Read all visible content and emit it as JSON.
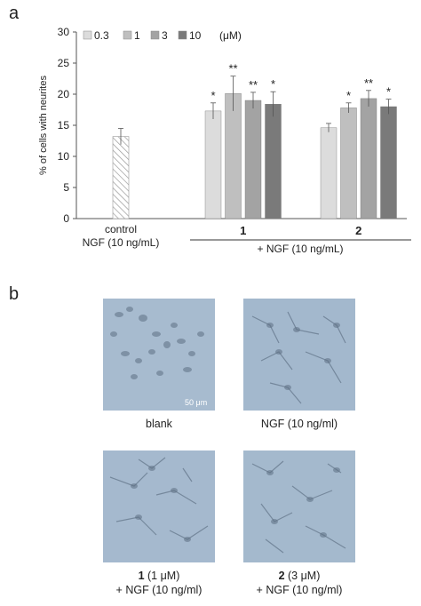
{
  "panels": {
    "a": "a",
    "b": "b"
  },
  "chart_data": {
    "type": "bar",
    "ylabel": "% of cells with neurites",
    "ylim": [
      0,
      30
    ],
    "yticks": [
      0,
      5,
      10,
      15,
      20,
      25,
      30
    ],
    "legend": {
      "placement": "top",
      "entries": [
        "0.3",
        "1",
        "3",
        "10"
      ],
      "unit": "(μM)"
    },
    "colors": {
      "control": "hatched",
      "series": [
        "#dcdcdc",
        "#bfbfbf",
        "#a3a3a3",
        "#7a7a7a"
      ]
    },
    "control": {
      "value": 13.2,
      "error": 1.3,
      "label_line1": "control",
      "label_line2": "NGF (10 ng/mL)"
    },
    "groups": [
      {
        "name": "1",
        "values": [
          17.3,
          20.1,
          19.0,
          18.4
        ],
        "errors": [
          1.3,
          2.8,
          1.3,
          2.0
        ],
        "marks": [
          "*",
          "**",
          "**",
          "*"
        ]
      },
      {
        "name": "2",
        "values": [
          14.6,
          17.8,
          19.3,
          18.0
        ],
        "errors": [
          0.7,
          0.8,
          1.3,
          1.2
        ],
        "marks": [
          "",
          "*",
          "**",
          "*"
        ]
      }
    ],
    "bracket_label": "+ NGF (10 ng/mL)"
  },
  "micrographs": [
    {
      "id": "blank",
      "caption_bold": "",
      "caption_line1": "blank",
      "caption_line2": "",
      "scalebar": "50 μm"
    },
    {
      "id": "ngf",
      "caption_bold": "",
      "caption_line1": "NGF (10 ng/ml)",
      "caption_line2": "",
      "scalebar": ""
    },
    {
      "id": "c1",
      "caption_bold": "1",
      "caption_line1": " (1 μM)",
      "caption_line2": "+ NGF (10 ng/ml)",
      "scalebar": ""
    },
    {
      "id": "c2",
      "caption_bold": "2",
      "caption_line1": " (3 μM)",
      "caption_line2": "+ NGF (10 ng/ml)",
      "scalebar": ""
    }
  ]
}
